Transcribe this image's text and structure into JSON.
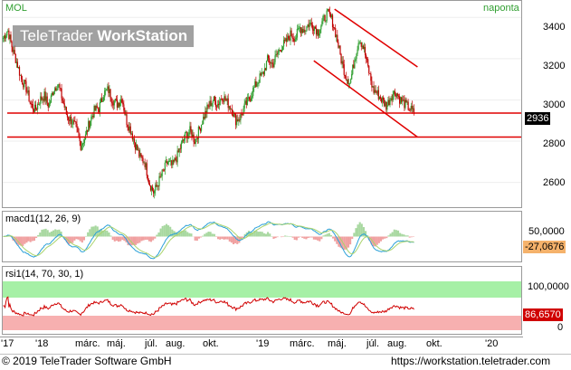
{
  "price_panel": {
    "symbol": "MOL",
    "period": "naponta",
    "watermark_brand": "TeleTrader",
    "watermark_product": "WorkStation",
    "y_ticks": [
      "3400",
      "3200",
      "3000",
      "2800",
      "2600"
    ],
    "last_price": "2936"
  },
  "macd_panel": {
    "title": "macd1(12, 26, 9)",
    "y_ticks": [
      "50,0000"
    ],
    "last_value": "-27,0676"
  },
  "rsi_panel": {
    "title": "rsi1(14, 70, 30, 1)",
    "y_ticks": [
      "100,0000",
      "0"
    ],
    "last_value": "86,6570"
  },
  "time_axis": {
    "labels": [
      "'17",
      "'18",
      "márc.",
      "máj.",
      "júl.",
      "aug.",
      "okt.",
      "'19",
      "márc.",
      "máj.",
      "júl.",
      "aug.",
      "okt.",
      "'20"
    ]
  },
  "footer": {
    "copyright": "© 2019 TeleTrader Software GmbH",
    "url": "https://workstation.teletrader.com"
  },
  "colors": {
    "up_candle": "#2f9e2f",
    "down_candle": "#c00000",
    "trend_line": "#e00000",
    "macd_line": "#2aa0d8",
    "signal_line": "#a9d36c",
    "rsi_line": "#d00000",
    "rsi_overbought": "#a6f0a6",
    "rsi_oversold": "#f7b0b0"
  },
  "chart_data": {
    "type": "candlestick",
    "y_range": [
      2480,
      3480
    ],
    "horizontal_levels": [
      2936,
      2820
    ],
    "trend_channel": [
      {
        "from": {
          "x": 0.64,
          "y": 3440
        },
        "to": {
          "x": 0.8,
          "y": 3160
        }
      },
      {
        "from": {
          "x": 0.6,
          "y": 3190
        },
        "to": {
          "x": 0.8,
          "y": 2820
        }
      }
    ],
    "close_series": [
      3300,
      3340,
      3250,
      3180,
      3100,
      3060,
      2980,
      2950,
      3000,
      3020,
      2970,
      3050,
      3080,
      3000,
      2920,
      2900,
      2860,
      2780,
      2820,
      2900,
      2950,
      2960,
      3030,
      3050,
      3000,
      2980,
      3010,
      2900,
      2850,
      2780,
      2720,
      2700,
      2600,
      2550,
      2600,
      2650,
      2700,
      2680,
      2720,
      2780,
      2830,
      2850,
      2800,
      2860,
      2920,
      2970,
      3000,
      2980,
      3020,
      2990,
      2960,
      2900,
      2920,
      2970,
      3010,
      3060,
      3100,
      3130,
      3200,
      3170,
      3220,
      3260,
      3280,
      3320,
      3300,
      3350,
      3340,
      3370,
      3360,
      3330,
      3380,
      3420,
      3390,
      3310,
      3200,
      3120,
      3080,
      3200,
      3300,
      3250,
      3150,
      3050,
      3030,
      3000,
      2970,
      3020,
      3040,
      3000,
      2980,
      2960,
      2936
    ],
    "macd_range": [
      -80,
      80
    ],
    "rsi_range": [
      0,
      100
    ],
    "rsi_overbought": 70,
    "rsi_oversold": 30,
    "rsi_last": 86.657
  }
}
